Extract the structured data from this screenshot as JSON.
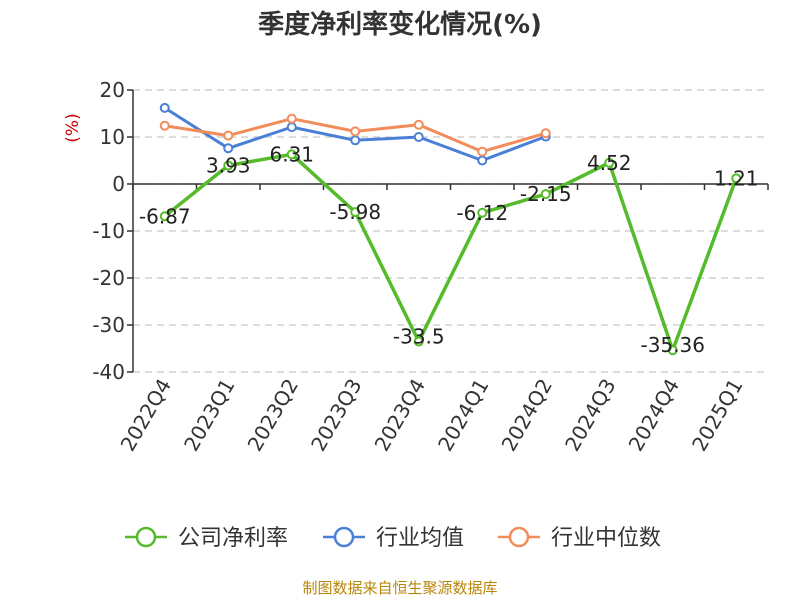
{
  "chart_data": {
    "type": "line",
    "title": "季度净利率变化情况(%)",
    "ylabel": "(%)",
    "xlabel": "",
    "ylim": [
      -40,
      20
    ],
    "yticks": [
      20,
      10,
      0,
      -10,
      -20,
      -30,
      -40
    ],
    "grid": true,
    "legend_position": "bottom",
    "categories": [
      "2022Q4",
      "2023Q1",
      "2023Q2",
      "2023Q3",
      "2023Q4",
      "2024Q1",
      "2024Q2",
      "2024Q3",
      "2024Q4",
      "2025Q1"
    ],
    "series": [
      {
        "name": "公司净利率",
        "color": "#55bb2a",
        "values": [
          -6.87,
          3.93,
          6.31,
          -5.98,
          -33.5,
          -6.12,
          -2.15,
          4.52,
          -35.36,
          1.21
        ],
        "labels": [
          "-6.87",
          "3.93",
          "6.31",
          "-5.98",
          "-33.5",
          "-6.12",
          "-2.15",
          "4.52",
          "-35.36",
          "1.21"
        ]
      },
      {
        "name": "行业均值",
        "color": "#4a7fd6",
        "values": [
          16.2,
          7.6,
          12.1,
          9.3,
          10.0,
          5.0,
          10.1,
          null,
          null,
          null
        ]
      },
      {
        "name": "行业中位数",
        "color": "#f28c5a",
        "values": [
          12.4,
          10.3,
          13.9,
          11.2,
          12.6,
          6.9,
          10.8,
          null,
          null,
          null
        ]
      }
    ]
  },
  "source": "制图数据来自恒生聚源数据库"
}
